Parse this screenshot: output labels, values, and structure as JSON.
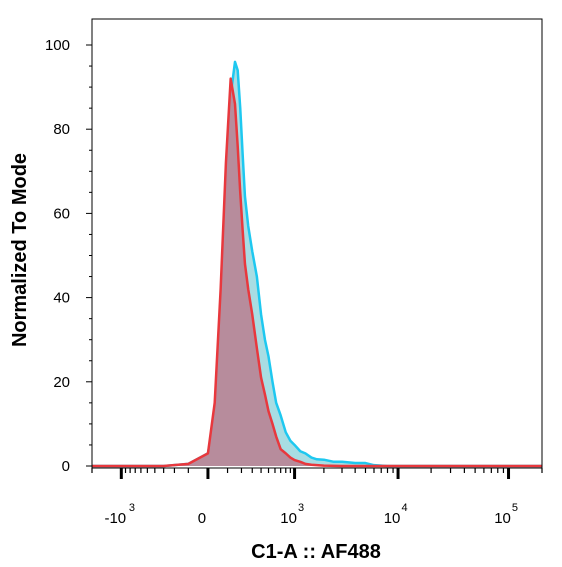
{
  "chart_data": {
    "type": "area",
    "title": "",
    "xlabel": "C1-A :: AF488",
    "ylabel": "Normalized To Mode",
    "x_scale": "biexponential",
    "xlim": [
      -2000,
      200000
    ],
    "ylim": [
      0,
      100
    ],
    "y_ticks": [
      0,
      20,
      40,
      60,
      80,
      100
    ],
    "x_ticks": [
      {
        "value": -1000,
        "label": "-10",
        "exp": "3"
      },
      {
        "value": 0,
        "label": "0",
        "exp": ""
      },
      {
        "value": 1000,
        "label": "10",
        "exp": "3"
      },
      {
        "value": 10000,
        "label": "10",
        "exp": "4"
      },
      {
        "value": 100000,
        "label": "10",
        "exp": "5"
      }
    ],
    "grid": false,
    "legend": "none",
    "series": [
      {
        "color": "#1ec8f0",
        "fill": "#a8dde3",
        "x": [
          -2000,
          -300,
          -100,
          0,
          30,
          60,
          90,
          120,
          150,
          170,
          190,
          210,
          230,
          260,
          300,
          350,
          400,
          450,
          500,
          560,
          620,
          700,
          800,
          900,
          1000,
          1150,
          1300,
          1500,
          1700,
          2000,
          2500,
          3000,
          4000,
          5000,
          6000,
          8000,
          20000,
          60000,
          200000
        ],
        "y": [
          0,
          0,
          0.5,
          3,
          12,
          35,
          65,
          88,
          96,
          94,
          85,
          74,
          64,
          57,
          51,
          45,
          36,
          30,
          26,
          20,
          15,
          12,
          8,
          6,
          5,
          3.5,
          3,
          2,
          1.6,
          1.5,
          1,
          1,
          0.7,
          0.7,
          0.2,
          0,
          0,
          0,
          0
        ]
      },
      {
        "color": "#e8383d",
        "fill": "#b78c9c",
        "x": [
          -2000,
          -300,
          -100,
          0,
          30,
          60,
          90,
          120,
          150,
          170,
          190,
          210,
          230,
          260,
          300,
          350,
          400,
          450,
          500,
          560,
          620,
          700,
          800,
          900,
          1000,
          1150,
          1300,
          1500,
          1700,
          2000,
          3000,
          200000
        ],
        "y": [
          0,
          0,
          0.5,
          3,
          15,
          42,
          72,
          92,
          86,
          76,
          65,
          56,
          48,
          42,
          36,
          28,
          21,
          17,
          13,
          10,
          7,
          4,
          3,
          2,
          1.4,
          1,
          0.5,
          0.3,
          0.2,
          0.1,
          0,
          0
        ]
      }
    ]
  }
}
